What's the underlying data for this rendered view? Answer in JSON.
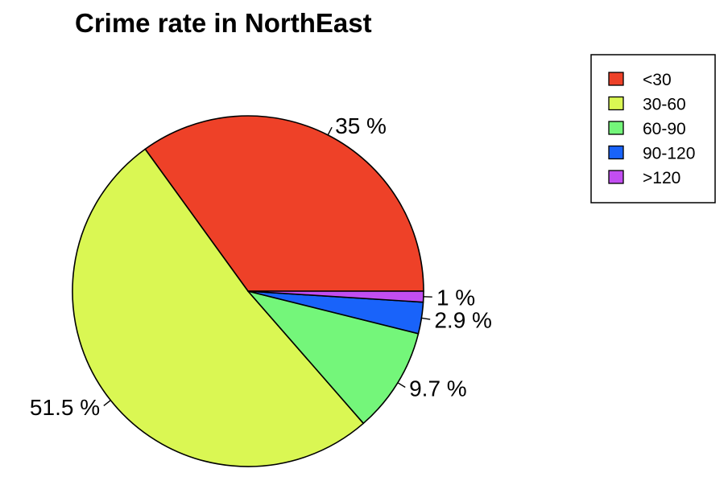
{
  "chart_data": {
    "type": "pie",
    "title": "Crime rate in NorthEast",
    "start_angle_deg": 0,
    "direction": "counterclockwise",
    "slices": [
      {
        "label": "<30",
        "value": 35.0,
        "pct_label": "35 %",
        "color": "#EE4128"
      },
      {
        "label": "30-60",
        "value": 51.5,
        "pct_label": "51.5 %",
        "color": "#DAF753"
      },
      {
        "label": "60-90",
        "value": 9.7,
        "pct_label": "9.7 %",
        "color": "#74F67A"
      },
      {
        "label": "90-120",
        "value": 2.9,
        "pct_label": "2.9 %",
        "color": "#1963FA"
      },
      {
        "label": ">120",
        "value": 1.0,
        "pct_label": "1 %",
        "color": "#C24EF1"
      }
    ],
    "legend": {
      "placement": "top-right",
      "entries": [
        "<30",
        "30-60",
        "60-90",
        "90-120",
        ">120"
      ]
    }
  }
}
